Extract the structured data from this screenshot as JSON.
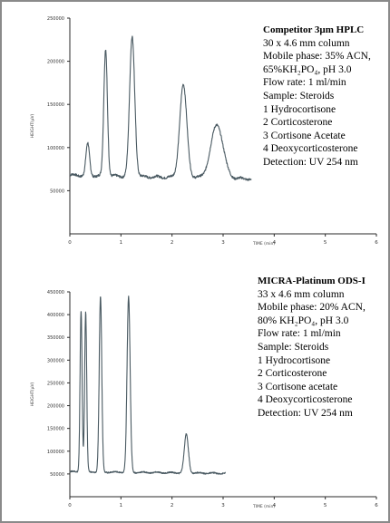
{
  "colors": {
    "trace": "#4a5a62",
    "axis": "#2a2a2a",
    "frame": "#8a8a8a"
  },
  "chart_data": [
    {
      "type": "line",
      "title": "Competitor 3µm HPLC",
      "annotation": [
        "30 x 4.6 mm column",
        "Mobile phase: 35% ACN,",
        "65%KH₂PO₄, pH 3.0",
        "Flow rate: 1 ml/min",
        "Sample: Steroids",
        "1 Hydrocortisone",
        "2 Corticosterone",
        "3 Cortisone Acetate",
        "4 Deoxycorticosterone",
        "Detection: UV 254 nm"
      ],
      "xlabel": "TIME (min)",
      "ylabel": "HEIGHT(µV)",
      "xlim": [
        0,
        6
      ],
      "ylim": [
        0,
        250000
      ],
      "xticks": [
        0,
        1,
        2,
        3,
        4,
        5,
        6
      ],
      "xtick_labels": [
        "0",
        "1",
        "2",
        "3",
        "4",
        "5",
        "6"
      ],
      "yticks": [
        50000,
        100000,
        150000,
        200000,
        250000
      ],
      "ytick_labels": [
        "50000",
        "100000",
        "150000",
        "200000",
        "250000"
      ],
      "baseline": 68000,
      "x_end": 3.55,
      "peaks": [
        {
          "x": 0.35,
          "height": 105000,
          "width": 0.035
        },
        {
          "x": 0.7,
          "height": 215000,
          "width": 0.035
        },
        {
          "x": 1.22,
          "height": 230000,
          "width": 0.05
        },
        {
          "x": 2.22,
          "height": 175000,
          "width": 0.07
        },
        {
          "x": 2.88,
          "height": 130000,
          "width": 0.12
        }
      ]
    },
    {
      "type": "line",
      "title": "MICRA-Platinum ODS-I",
      "annotation": [
        "33 x 4.6 mm column",
        "Mobile phase: 20% ACN,",
        "80% KH₂PO₄, pH 3.0",
        "Flow rate: 1 ml/min",
        "Sample: Steroids",
        "1 Hydrocortisone",
        "2 Corticosterone",
        "3 Cortisone acetate",
        "4 Deoxycorticosterone",
        "Detection: UV 254 nm"
      ],
      "xlabel": "TIME (min)",
      "ylabel": "HEIGHT(µV)",
      "xlim": [
        0,
        6
      ],
      "ylim": [
        0,
        450000
      ],
      "xticks": [
        0,
        1,
        2,
        3,
        4,
        5,
        6
      ],
      "xtick_labels": [
        "0",
        "1",
        "2",
        "3",
        "4",
        "5",
        "6"
      ],
      "yticks": [
        50000,
        100000,
        150000,
        200000,
        250000,
        300000,
        350000,
        400000,
        450000
      ],
      "ytick_labels": [
        "50000",
        "100000",
        "150000",
        "200000",
        "250000",
        "300000",
        "350000",
        "400000",
        "450000"
      ],
      "baseline": 55000,
      "x_end": 3.05,
      "peaks": [
        {
          "x": 0.22,
          "height": 410000,
          "width": 0.02
        },
        {
          "x": 0.31,
          "height": 405000,
          "width": 0.02
        },
        {
          "x": 0.6,
          "height": 440000,
          "width": 0.025
        },
        {
          "x": 1.15,
          "height": 440000,
          "width": 0.03
        },
        {
          "x": 2.28,
          "height": 140000,
          "width": 0.04
        }
      ]
    }
  ]
}
